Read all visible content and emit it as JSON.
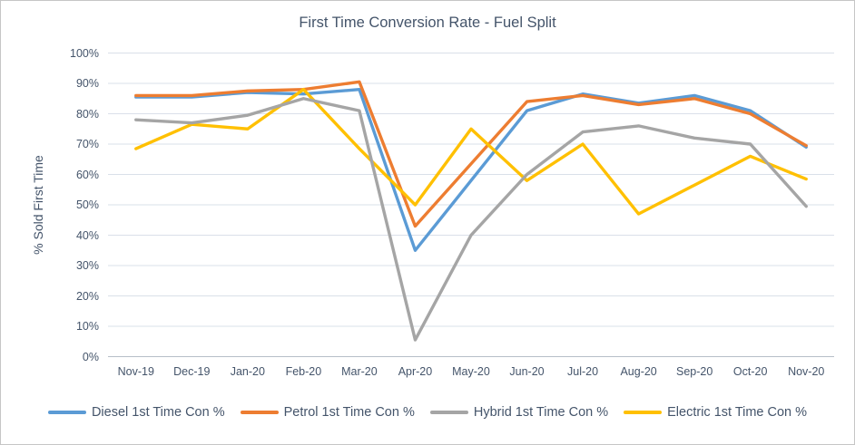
{
  "chart_data": {
    "type": "line",
    "title": "First Time Conversion Rate - Fuel Split",
    "ylabel": "% Sold First Time",
    "xlabel": "",
    "categories": [
      "Nov-19",
      "Dec-19",
      "Jan-20",
      "Feb-20",
      "Mar-20",
      "Apr-20",
      "May-20",
      "Jun-20",
      "Jul-20",
      "Aug-20",
      "Sep-20",
      "Oct-20",
      "Nov-20"
    ],
    "y_ticks": [
      "0%",
      "10%",
      "20%",
      "30%",
      "40%",
      "50%",
      "60%",
      "70%",
      "80%",
      "90%",
      "100%"
    ],
    "ylim": [
      0,
      100
    ],
    "unit": "%",
    "grid": true,
    "legend_position": "bottom",
    "series": [
      {
        "name": "Diesel 1st Time Con %",
        "color": "#5B9BD5",
        "values": [
          85.5,
          85.5,
          87,
          86.5,
          88,
          35,
          58,
          81,
          86.5,
          83.5,
          86,
          81,
          69
        ]
      },
      {
        "name": "Petrol 1st Time Con %",
        "color": "#ED7D31",
        "values": [
          86,
          86,
          87.5,
          88,
          90.5,
          43,
          63.5,
          84,
          86,
          83,
          85,
          80,
          69.5
        ]
      },
      {
        "name": "Hybrid 1st Time Con %",
        "color": "#A5A5A5",
        "values": [
          78,
          77,
          79.5,
          85,
          81,
          5.5,
          40,
          60,
          74,
          76,
          72,
          70,
          49.5
        ]
      },
      {
        "name": "Electric 1st Time Con %",
        "color": "#FFC000",
        "values": [
          68.5,
          76.5,
          75,
          88,
          68.5,
          50,
          75,
          58,
          70,
          47,
          56.5,
          66,
          58.5
        ]
      }
    ],
    "draw_order": [
      0,
      1,
      3,
      2
    ],
    "gridline_color": "#dae0e9",
    "axis_line_color": "#b7bec8",
    "text_color": "#44546A"
  }
}
